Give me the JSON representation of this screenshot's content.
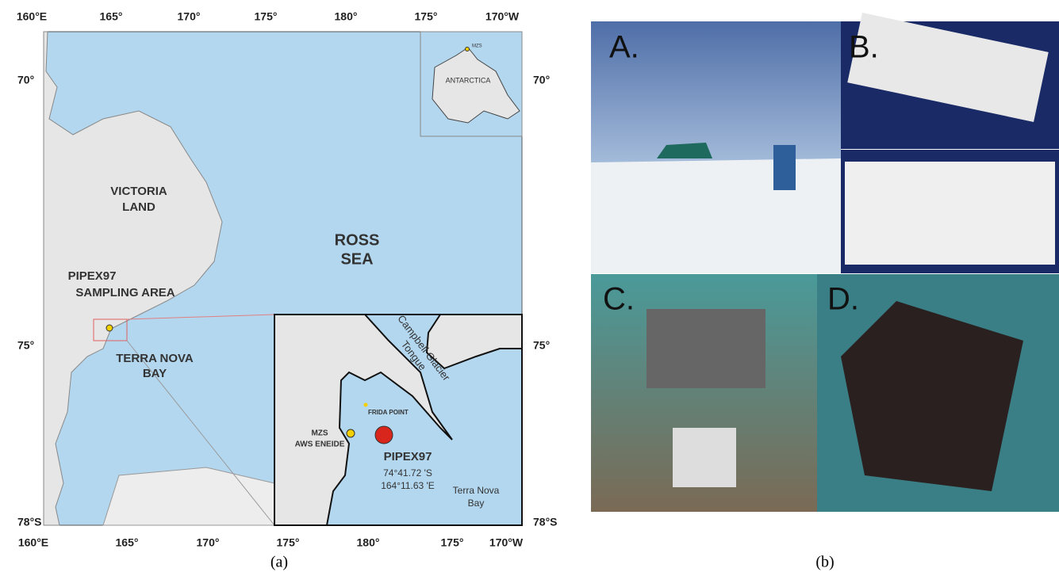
{
  "map": {
    "top_labels": [
      "160°E",
      "165°",
      "170°",
      "175°",
      "180°",
      "175°",
      "170°W"
    ],
    "bottom_labels": [
      "160°E",
      "165°",
      "170°",
      "175°",
      "180°",
      "175°",
      "170°W"
    ],
    "left_labels": [
      "70°",
      "75°",
      "78°S"
    ],
    "right_labels": [
      "70°",
      "75°",
      "78°S"
    ],
    "inset": {
      "name": "ANTARCTICA",
      "station": "MZS"
    },
    "victoria_land": [
      "VICTORIA",
      "LAND"
    ],
    "ross_sea": [
      "ROSS",
      "SEA"
    ],
    "sampling_area": [
      "PIPEX97",
      "SAMPLING AREA"
    ],
    "terra_nova_bay": [
      "TERRA NOVA",
      "BAY"
    ],
    "zoom": {
      "glacier": [
        "Campbell Glacier",
        "Tongue"
      ],
      "frida_point": "FRIDA POINT",
      "station": [
        "MZS",
        "AWS ENEIDE"
      ],
      "site": "PIPEX97",
      "lat": "74°41.72 'S",
      "lon": "164°11.63 'E",
      "bay": [
        "Terra Nova",
        "Bay"
      ]
    },
    "caption": "(a)"
  },
  "photos": {
    "labels": [
      "A.",
      "B.",
      "C.",
      "D."
    ],
    "caption": "(b)"
  }
}
